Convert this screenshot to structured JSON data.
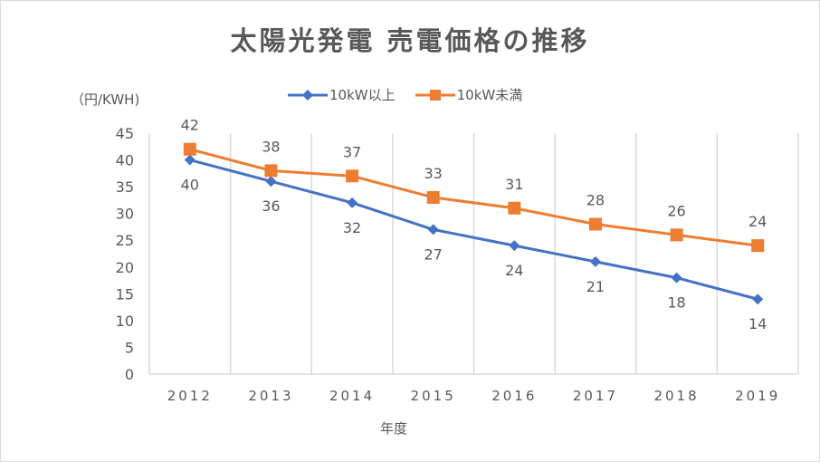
{
  "chart_data": {
    "type": "line",
    "title": "太陽光発電 売電価格の推移",
    "xlabel": "年度",
    "ylabel": "（円/KWH)",
    "categories": [
      "2012",
      "2013",
      "2014",
      "2015",
      "2016",
      "2017",
      "2018",
      "2019"
    ],
    "ylim": [
      0,
      45
    ],
    "yticks": [
      0,
      5,
      10,
      15,
      20,
      25,
      30,
      35,
      40,
      45
    ],
    "grid": "vertical",
    "legend_position": "top",
    "series": [
      {
        "name": "10kW以上",
        "color": "#4472c4",
        "marker": "diamond",
        "label_position": "below",
        "values": [
          40,
          36,
          32,
          27,
          24,
          21,
          18,
          14
        ]
      },
      {
        "name": "10kW未満",
        "color": "#ed7d31",
        "marker": "square",
        "label_position": "above",
        "values": [
          42,
          38,
          37,
          33,
          31,
          28,
          26,
          24
        ]
      }
    ]
  }
}
